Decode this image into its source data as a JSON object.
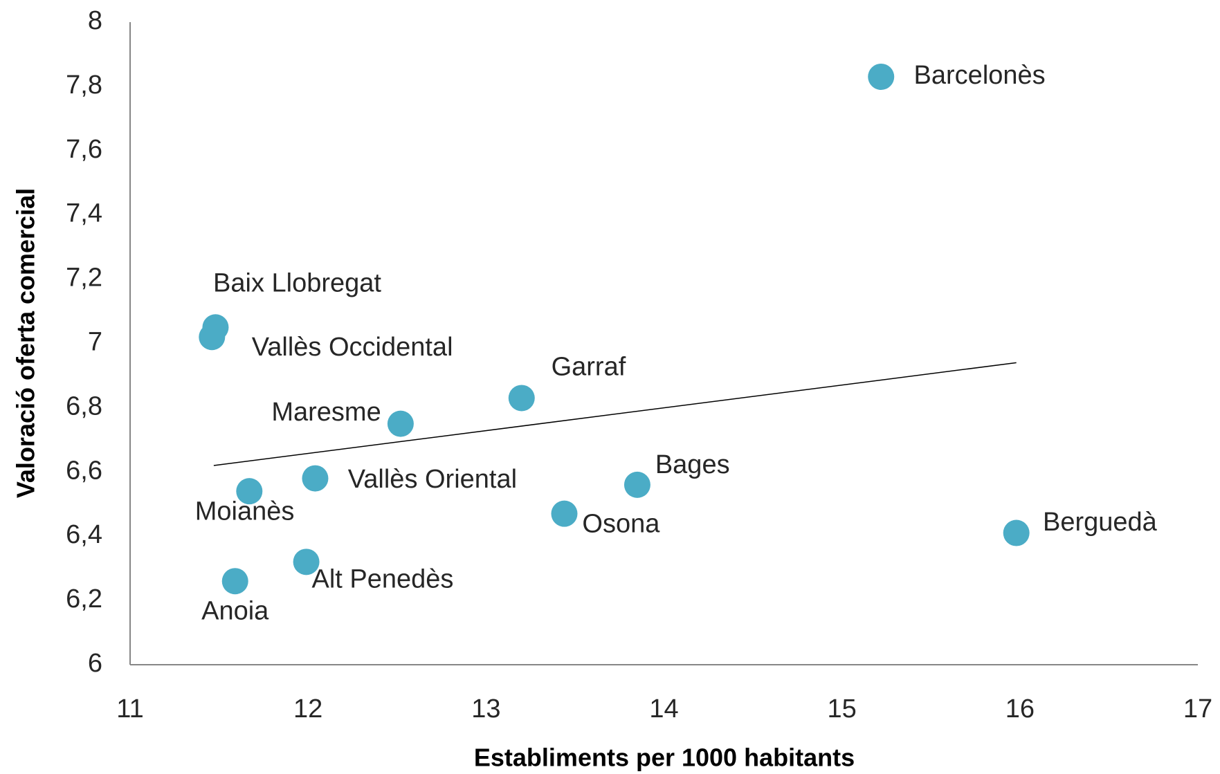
{
  "chart_data": {
    "type": "scatter",
    "x_label": "Establiments per 1000 habitants",
    "y_label": "Valoració oferta comercial",
    "color": "#4bacc6",
    "series": [
      {
        "name": null,
        "color": "#4bacc6",
        "labels": [
          "Barcelonès",
          "Baix Llobregat",
          "Vallès Occidental",
          "Garraf",
          "Maresme",
          "Vallès Oriental",
          "Moianès",
          "Bages",
          "Osona",
          "Berguedà",
          "Alt Penedès",
          "Anoia"
        ],
        "x": [
          15.22,
          11.48,
          11.46,
          13.2,
          12.52,
          12.04,
          11.67,
          13.85,
          13.44,
          15.98,
          11.99,
          11.59
        ],
        "values": [
          7.83,
          7.05,
          7.02,
          6.83,
          6.75,
          6.58,
          6.54,
          6.56,
          6.47,
          6.41,
          6.32,
          6.26
        ]
      }
    ],
    "trendline": {
      "x": [
        11.47,
        15.98
      ],
      "y": [
        6.62,
        6.94
      ],
      "color": "#000000"
    },
    "xlim": [
      11,
      17
    ],
    "xticks": [
      11,
      12,
      13,
      14,
      15,
      16,
      17
    ],
    "ylim": [
      6,
      8
    ],
    "yticks": [
      6,
      {
        "value": 6.2,
        "label": "6,2"
      },
      {
        "value": 6.4,
        "label": "6,4"
      },
      {
        "value": 6.6,
        "label": "6,6"
      },
      {
        "value": 6.8,
        "label": "6,8"
      },
      7,
      {
        "value": 7.2,
        "label": "7,2"
      },
      {
        "value": 7.4,
        "label": "7,4"
      },
      {
        "value": 7.6,
        "label": "7,6"
      },
      {
        "value": 7.8,
        "label": "7,8"
      },
      8
    ],
    "grid": false
  }
}
